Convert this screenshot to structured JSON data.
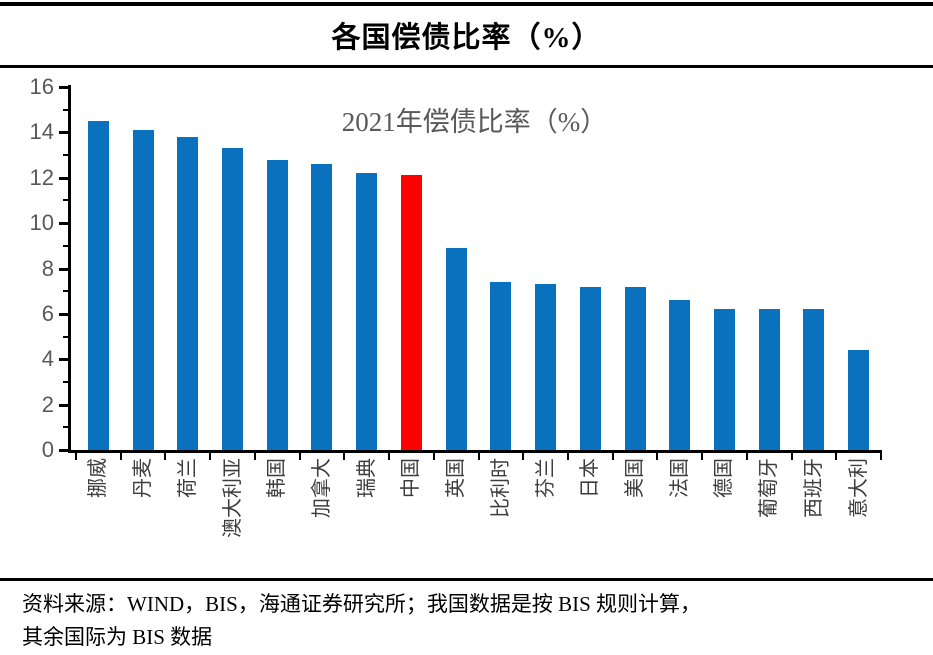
{
  "chart_data": {
    "type": "bar",
    "title": "各国偿债比率（%）",
    "subtitle": "2021年偿债比率（%）",
    "categories": [
      "挪威",
      "丹麦",
      "荷兰",
      "澳大利亚",
      "韩国",
      "加拿大",
      "瑞典",
      "中国",
      "英国",
      "比利时",
      "芬兰",
      "日本",
      "美国",
      "法国",
      "德国",
      "葡萄牙",
      "西班牙",
      "意大利"
    ],
    "values": [
      14.5,
      14.1,
      13.8,
      13.3,
      12.8,
      12.6,
      12.2,
      12.1,
      8.9,
      7.4,
      7.3,
      7.2,
      7.2,
      6.6,
      6.2,
      6.2,
      6.2,
      4.4
    ],
    "highlighted_category": "中国",
    "highlighted_index": 7,
    "colors": {
      "bar": "#0a71be",
      "highlight": "#ff0000",
      "axis": "#000000",
      "y_tick_label": "#595959",
      "category_label": "#3d3d3d",
      "subtitle": "#595959"
    },
    "ylim": [
      0,
      16
    ],
    "yticks": [
      0,
      2,
      4,
      6,
      8,
      10,
      12,
      14,
      16
    ],
    "minor_tick_step": 1,
    "grid": false,
    "legend": "none"
  },
  "footer": {
    "source_line1": "资料来源：WIND，BIS，海通证券研究所；我国数据是按 BIS 规则计算，",
    "source_line2": "其余国际为 BIS 数据"
  }
}
